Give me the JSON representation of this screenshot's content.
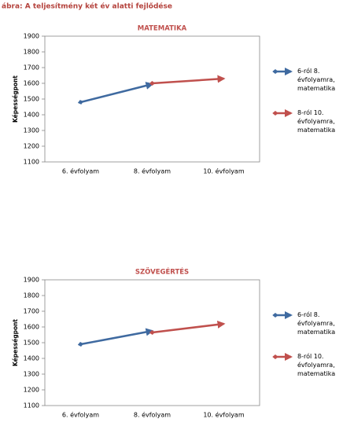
{
  "caption": "ábra: A teljesítmény két év alatti fejlődése",
  "chart_data": [
    {
      "type": "line",
      "title": "MATEMATIKA",
      "y_label": "Képességpont",
      "categories": [
        "6. évfolyam",
        "8. évfolyam",
        "10. évfolyam"
      ],
      "series": [
        {
          "name": "6-ról 8. évfolyamra, matematika",
          "color": "#3f6aa0",
          "values": [
            1480,
            1595,
            null
          ]
        },
        {
          "name": "8-ról 10. évfolyamra, matematika",
          "color": "#c0504d",
          "values": [
            null,
            1600,
            1630
          ]
        }
      ],
      "ylim": [
        1100,
        1900
      ],
      "yticks": [
        1100,
        1200,
        1300,
        1400,
        1500,
        1600,
        1700,
        1800,
        1900
      ],
      "grid": false
    },
    {
      "type": "line",
      "title": "SZÖVEGÉRTÉS",
      "y_label": "Képességpont",
      "categories": [
        "6. évfolyam",
        "8. évfolyam",
        "10. évfolyam"
      ],
      "series": [
        {
          "name": "6-ról 8. évfolyamra, matematika",
          "color": "#3f6aa0",
          "values": [
            1490,
            1575,
            null
          ]
        },
        {
          "name": "8-ról 10. évfolyamra, matematika",
          "color": "#c0504d",
          "values": [
            null,
            1565,
            1620
          ]
        }
      ],
      "ylim": [
        1100,
        1900
      ],
      "yticks": [
        1100,
        1200,
        1300,
        1400,
        1500,
        1600,
        1700,
        1800,
        1900
      ],
      "grid": false
    }
  ]
}
